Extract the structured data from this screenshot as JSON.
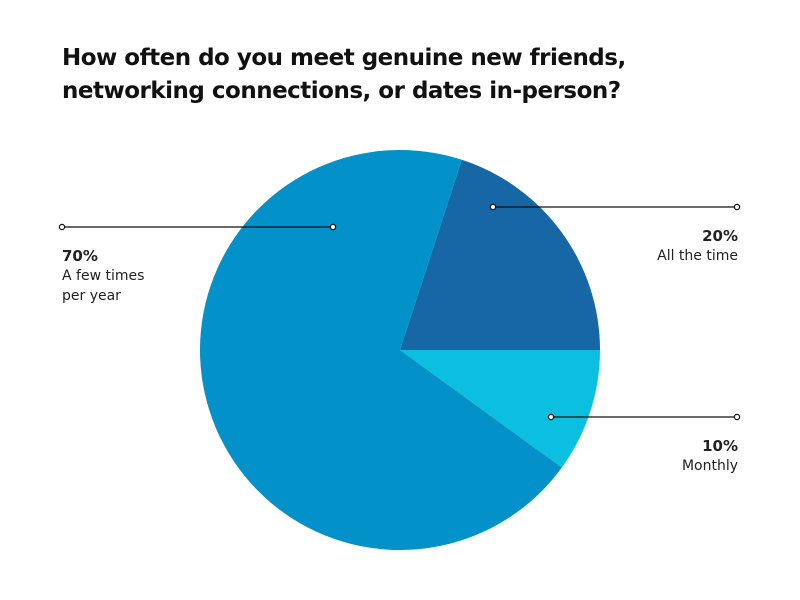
{
  "chart_data": {
    "type": "pie",
    "title": [
      {
        "text": "How often do you meet genuine new friends, networking connections, or dates ",
        "bold": false
      },
      {
        "text": "in-person",
        "bold": true
      },
      {
        "text": "?",
        "bold": false
      }
    ],
    "categories": [
      "All the time",
      "Monthly",
      "A few times per year"
    ],
    "values": [
      20,
      10,
      70
    ],
    "value_labels": [
      "20%",
      "10%",
      "70%"
    ],
    "colors": [
      "#1766a6",
      "#0bbfe0",
      "#0391c9"
    ]
  }
}
